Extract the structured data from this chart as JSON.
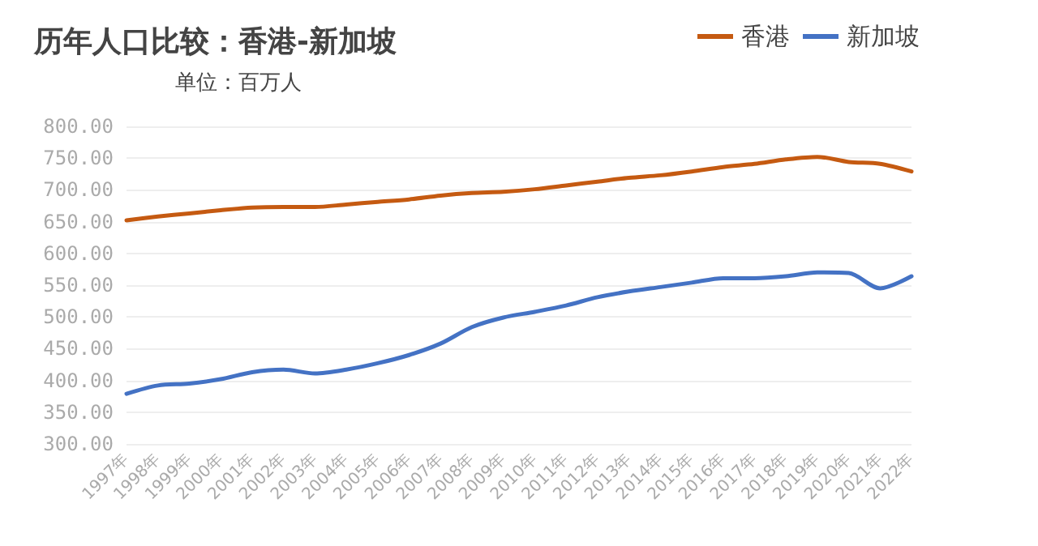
{
  "chart_data": {
    "type": "line",
    "title": "历年人口比较：香港-新加坡",
    "subtitle": "单位：百万人",
    "categories": [
      "1997年",
      "1998年",
      "1999年",
      "2000年",
      "2001年",
      "2002年",
      "2003年",
      "2004年",
      "2005年",
      "2006年",
      "2007年",
      "2008年",
      "2009年",
      "2010年",
      "2011年",
      "2012年",
      "2013年",
      "2014年",
      "2015年",
      "2016年",
      "2017年",
      "2018年",
      "2019年",
      "2020年",
      "2021年",
      "2022年"
    ],
    "series": [
      {
        "name": "香港",
        "color": "#c55a11",
        "values": [
          652,
          658,
          663,
          668,
          672,
          673,
          673,
          677,
          681,
          685,
          691,
          695,
          697,
          701,
          707,
          713,
          719,
          723,
          729,
          736,
          741,
          748,
          752,
          744,
          741,
          729
        ]
      },
      {
        "name": "新加坡",
        "color": "#4472c4",
        "values": [
          379,
          392,
          395,
          402,
          413,
          417,
          411,
          417,
          427,
          440,
          458,
          484,
          499,
          508,
          518,
          531,
          540,
          547,
          554,
          561,
          561,
          564,
          570,
          569,
          545,
          564
        ]
      }
    ],
    "ylim": [
      300,
      800
    ],
    "yticks": [
      {
        "value": 300,
        "label": "300.00"
      },
      {
        "value": 350,
        "label": "350.00"
      },
      {
        "value": 400,
        "label": "400.00"
      },
      {
        "value": 450,
        "label": "450.00"
      },
      {
        "value": 500,
        "label": "500.00"
      },
      {
        "value": 550,
        "label": "550.00"
      },
      {
        "value": 600,
        "label": "600.00"
      },
      {
        "value": 650,
        "label": "650.00"
      },
      {
        "value": 700,
        "label": "700.00"
      },
      {
        "value": 750,
        "label": "750.00"
      },
      {
        "value": 800,
        "label": "800.00"
      }
    ],
    "grid": "y",
    "legend": "top right",
    "marker": "none",
    "line_style": "solid"
  }
}
